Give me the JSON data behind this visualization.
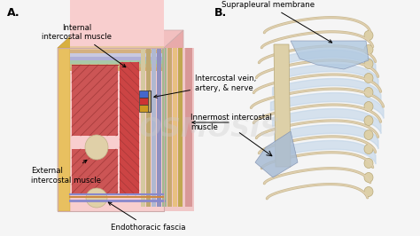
{
  "bg_color": "#f5f5f5",
  "title_A": "A.",
  "title_B": "B.",
  "watermark": "OSMOSIS",
  "label_suprapleural": "Suprapleural membrane",
  "label_internal": "Internal\nintercostal muscle",
  "label_intercostal": "Intercostal vein,\nartery, & nerve",
  "label_innermost": "Innermost intercostal\nmuscle",
  "label_external": "External\nintercostal muscle",
  "label_endothoracic": "Endothoracic fascia",
  "pink_light": "#f9d0d0",
  "pink_mid": "#f0b8b8",
  "pink_dark": "#e8a8a8",
  "yellow": "#e8c060",
  "red_ext": "#cc4444",
  "red_int": "#bb3333",
  "bone": "#e8d8b0",
  "rib_fill": "#e8dcc0",
  "rib_edge": "#c8b890",
  "blue_light": "#b8ccdc",
  "blue_mid": "#90a8c8"
}
